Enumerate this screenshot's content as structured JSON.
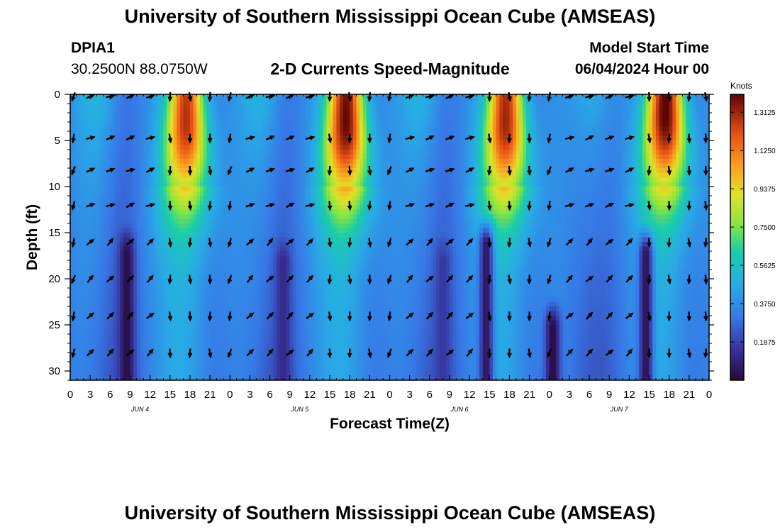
{
  "header": {
    "title": "University of Southern Mississippi Ocean Cube (AMSEAS)",
    "station_id": "DPIA1",
    "station_coords": "30.2500N  88.0750W",
    "subtitle": "2-D Currents Speed-Magnitude",
    "model_label": "Model Start Time",
    "model_date": "06/04/2024 Hour 00"
  },
  "footer": {
    "title": "University of Southern Mississippi Ocean Cube (AMSEAS)"
  },
  "chart_data": {
    "type": "heatmap",
    "title": "2-D Currents Speed-Magnitude",
    "xlabel": "Forecast Time(Z)",
    "ylabel": "Depth (ft)",
    "colorbar_label": "Knots",
    "colorbar_ticks": [
      "1.3125",
      "1.1250",
      "0.9375",
      "0.7500",
      "0.5625",
      "0.3750",
      "0.1875"
    ],
    "colorbar_values": [
      1.3125,
      1.125,
      0.9375,
      0.75,
      0.5625,
      0.375,
      0.1875
    ],
    "color_range": [
      0,
      1.4
    ],
    "x_range_hours": [
      0,
      96
    ],
    "y_range_ft": [
      0,
      31
    ],
    "x_tick_labels": [
      "0",
      "3",
      "6",
      "9",
      "12",
      "15",
      "18",
      "21",
      "0",
      "3",
      "6",
      "9",
      "12",
      "15",
      "18",
      "21",
      "0",
      "3",
      "6",
      "9",
      "12",
      "15",
      "18",
      "21",
      "0",
      "3",
      "6",
      "9",
      "12",
      "15",
      "18",
      "21",
      "0"
    ],
    "y_ticks": [
      0,
      5,
      10,
      15,
      20,
      25,
      30
    ],
    "day_labels": [
      "JUN 4",
      "JUN 5",
      "JUN 6",
      "JUN 7"
    ],
    "day_label_hours": [
      10.5,
      34.5,
      58.5,
      82.5
    ],
    "speed_peaks": [
      {
        "hour": 17.5,
        "depth_center": 3,
        "speed": 1.22
      },
      {
        "hour": 41.5,
        "depth_center": 3,
        "speed": 1.33
      },
      {
        "hour": 65.5,
        "depth_center": 3,
        "speed": 1.25
      },
      {
        "hour": 89.5,
        "depth_center": 2,
        "speed": 1.36
      }
    ],
    "speed_minima": [
      {
        "hour": 8.5,
        "depth_from": 16,
        "speed": 0.02
      },
      {
        "hour": 32.0,
        "depth_from": 17,
        "speed": 0.12
      },
      {
        "hour": 56.0,
        "depth_from": 17,
        "speed": 0.16
      },
      {
        "hour": 62.5,
        "depth_from": 15,
        "speed": 0.05
      },
      {
        "hour": 72.5,
        "depth_from": 24,
        "speed": 0.01
      },
      {
        "hour": 86.5,
        "depth_from": 16,
        "speed": 0.04
      }
    ],
    "arrow_depths_ft": [
      0,
      4.5,
      8,
      11.8,
      15.8,
      19.8,
      23.8,
      27.8
    ],
    "arrow_hours": [
      0.5,
      3,
      6,
      9,
      12,
      15,
      18,
      21,
      24,
      27,
      30,
      33,
      36,
      39,
      42,
      45,
      48,
      51,
      54,
      57,
      60,
      63,
      66,
      69,
      72,
      75,
      78,
      81,
      84,
      87,
      90,
      93,
      95.5
    ]
  }
}
